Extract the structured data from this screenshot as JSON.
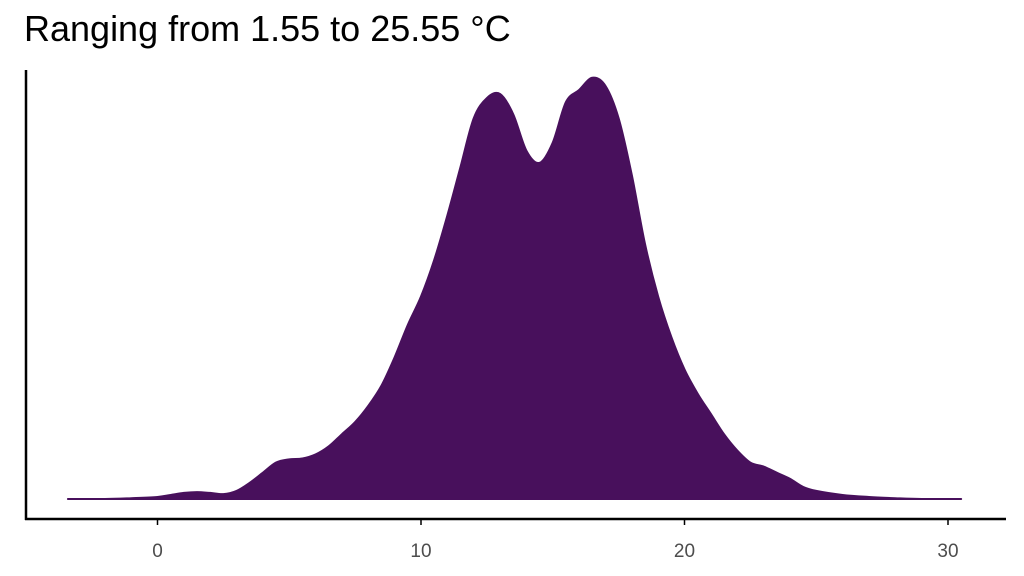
{
  "title": "Ranging from 1.55 to 25.55 °C",
  "colors": {
    "fill": "#48105c",
    "axis": "#000000",
    "tick_text": "#4d4d4d"
  },
  "chart_data": {
    "type": "area",
    "subtype": "density",
    "title": "Ranging from 1.55 to 25.55 °C",
    "xlabel": "",
    "ylabel": "",
    "xlim": [
      -5,
      32
    ],
    "ylim": [
      0,
      1.06
    ],
    "x_ticks": [
      0,
      10,
      20,
      30
    ],
    "y_ticks": [],
    "grid": false,
    "legend": "none",
    "series": [
      {
        "x": [
          -3.4,
          -2,
          -1,
          0,
          0.5,
          1,
          1.5,
          2,
          2.5,
          3,
          3.5,
          4,
          4.5,
          5,
          5.5,
          6,
          6.5,
          7,
          7.5,
          8,
          8.5,
          9,
          9.5,
          10,
          10.5,
          11,
          11.5,
          12,
          12.5,
          13,
          13.5,
          14,
          14.5,
          15,
          15.5,
          16,
          16.5,
          17,
          17.5,
          18,
          18.5,
          19,
          19.5,
          20,
          20.5,
          21,
          21.5,
          22,
          22.5,
          23,
          23.5,
          24,
          24.5,
          25,
          26,
          27,
          28,
          29,
          30.5
        ],
        "y": [
          0,
          0,
          0.002,
          0.005,
          0.01,
          0.015,
          0.017,
          0.015,
          0.012,
          0.02,
          0.04,
          0.065,
          0.09,
          0.098,
          0.1,
          0.11,
          0.13,
          0.16,
          0.19,
          0.23,
          0.28,
          0.35,
          0.43,
          0.5,
          0.59,
          0.7,
          0.82,
          0.94,
          0.99,
          1.0,
          0.95,
          0.86,
          0.83,
          0.88,
          0.98,
          1.01,
          1.04,
          1.02,
          0.94,
          0.8,
          0.63,
          0.5,
          0.4,
          0.32,
          0.26,
          0.21,
          0.16,
          0.12,
          0.09,
          0.08,
          0.065,
          0.05,
          0.03,
          0.02,
          0.01,
          0.005,
          0.002,
          0,
          0
        ]
      }
    ]
  }
}
